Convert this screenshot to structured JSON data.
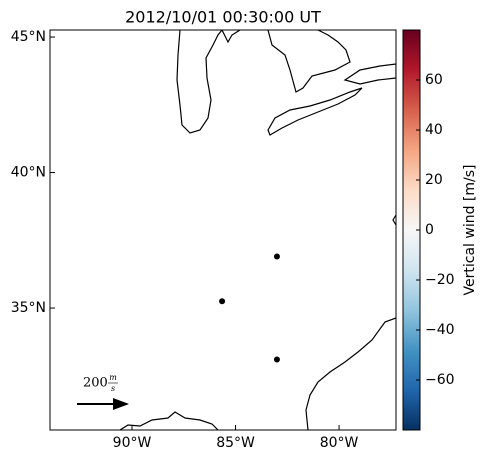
{
  "chart_data": {
    "type": "scatter",
    "title": "2012/10/01 00:30:00 UT",
    "xlim": [
      -93.96,
      -77.25
    ],
    "ylim": [
      30.5,
      45.26
    ],
    "xticks": [
      {
        "value": -90,
        "label": "90°W"
      },
      {
        "value": -85,
        "label": "85°W"
      },
      {
        "value": -80,
        "label": "80°W"
      }
    ],
    "yticks": [
      {
        "value": 45,
        "label": "45°N"
      },
      {
        "value": 40,
        "label": "40°N"
      },
      {
        "value": 35,
        "label": "35°N"
      }
    ],
    "points": {
      "lon": [
        -83.0,
        -85.65,
        -83.0
      ],
      "lat": [
        36.9,
        35.25,
        33.1
      ],
      "color": "#000000"
    },
    "quiver_key": {
      "value": 200,
      "unit_numerator": "m",
      "unit_denominator": "s"
    },
    "colorbar": {
      "label": "Vertical wind [m/s]",
      "lim": [
        -80,
        80
      ],
      "ticks": [
        {
          "value": -60,
          "label": "−60"
        },
        {
          "value": -40,
          "label": "−40"
        },
        {
          "value": -20,
          "label": "−20"
        },
        0,
        20,
        40,
        60
      ],
      "colors": [
        "#053061",
        "#2166ac",
        "#4393c3",
        "#92c5de",
        "#d1e5f0",
        "#f7f7f7",
        "#fddbc7",
        "#f4a582",
        "#d6604d",
        "#b2182b",
        "#67001f"
      ]
    }
  }
}
